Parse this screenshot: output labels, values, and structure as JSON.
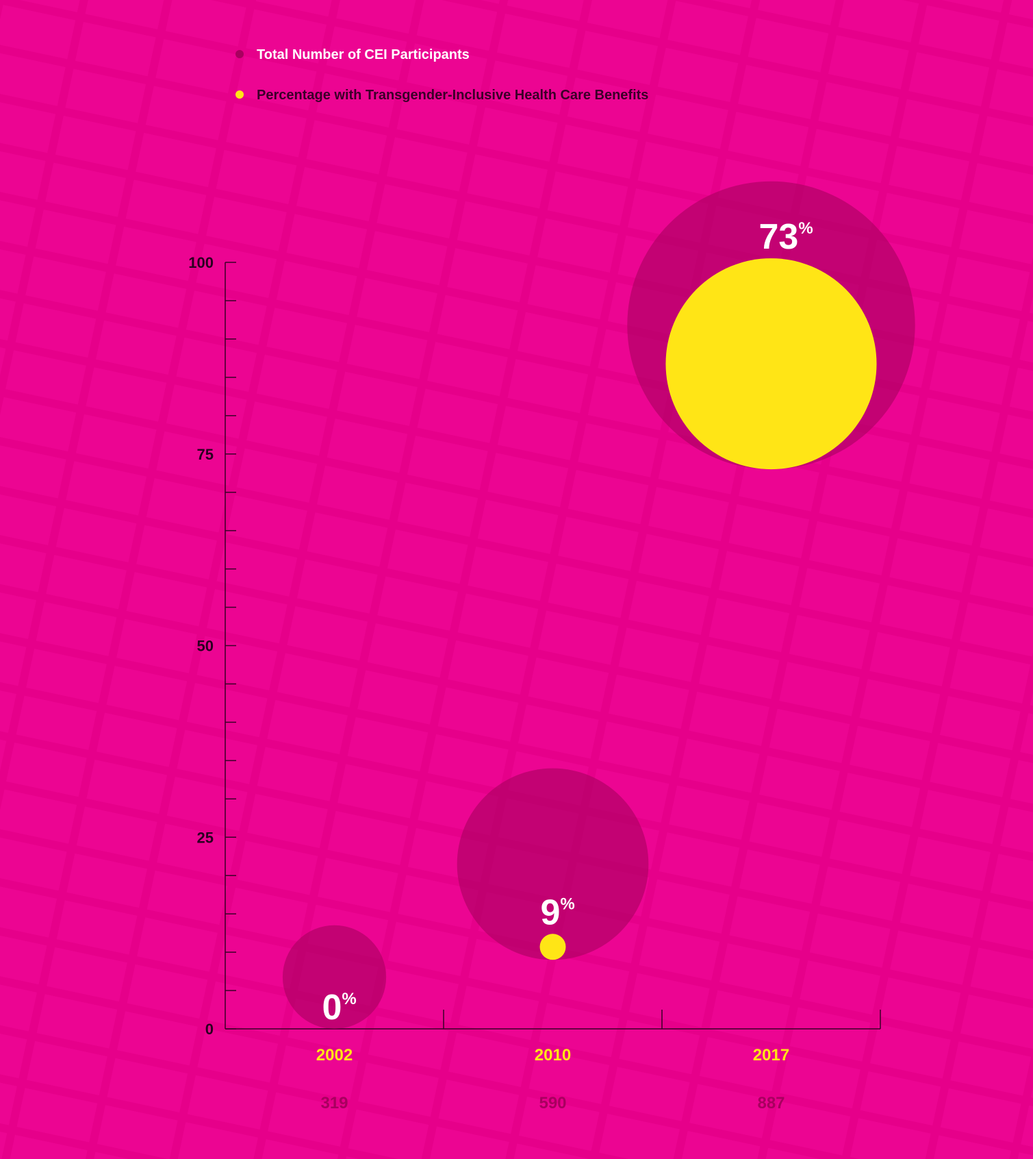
{
  "chart_data": {
    "type": "bubble",
    "categories": [
      "2002",
      "2010",
      "2017"
    ],
    "series": [
      {
        "name": "Total Number of CEI Participants",
        "color": "#a8005f",
        "values": [
          319,
          590,
          887
        ]
      },
      {
        "name": "Percentage with Transgender-Inclusive Health Care Benefits",
        "color": "#ffe516",
        "values": [
          0,
          9,
          73
        ],
        "value_labels": [
          "0%",
          "9%",
          "73%"
        ]
      }
    ],
    "ylim": [
      0,
      100
    ],
    "yticks": [
      0,
      25,
      50,
      75,
      100
    ],
    "yminorticks": [
      5,
      10,
      15,
      20,
      30,
      35,
      40,
      45,
      55,
      60,
      65,
      70,
      80,
      85,
      90,
      95
    ]
  }
}
